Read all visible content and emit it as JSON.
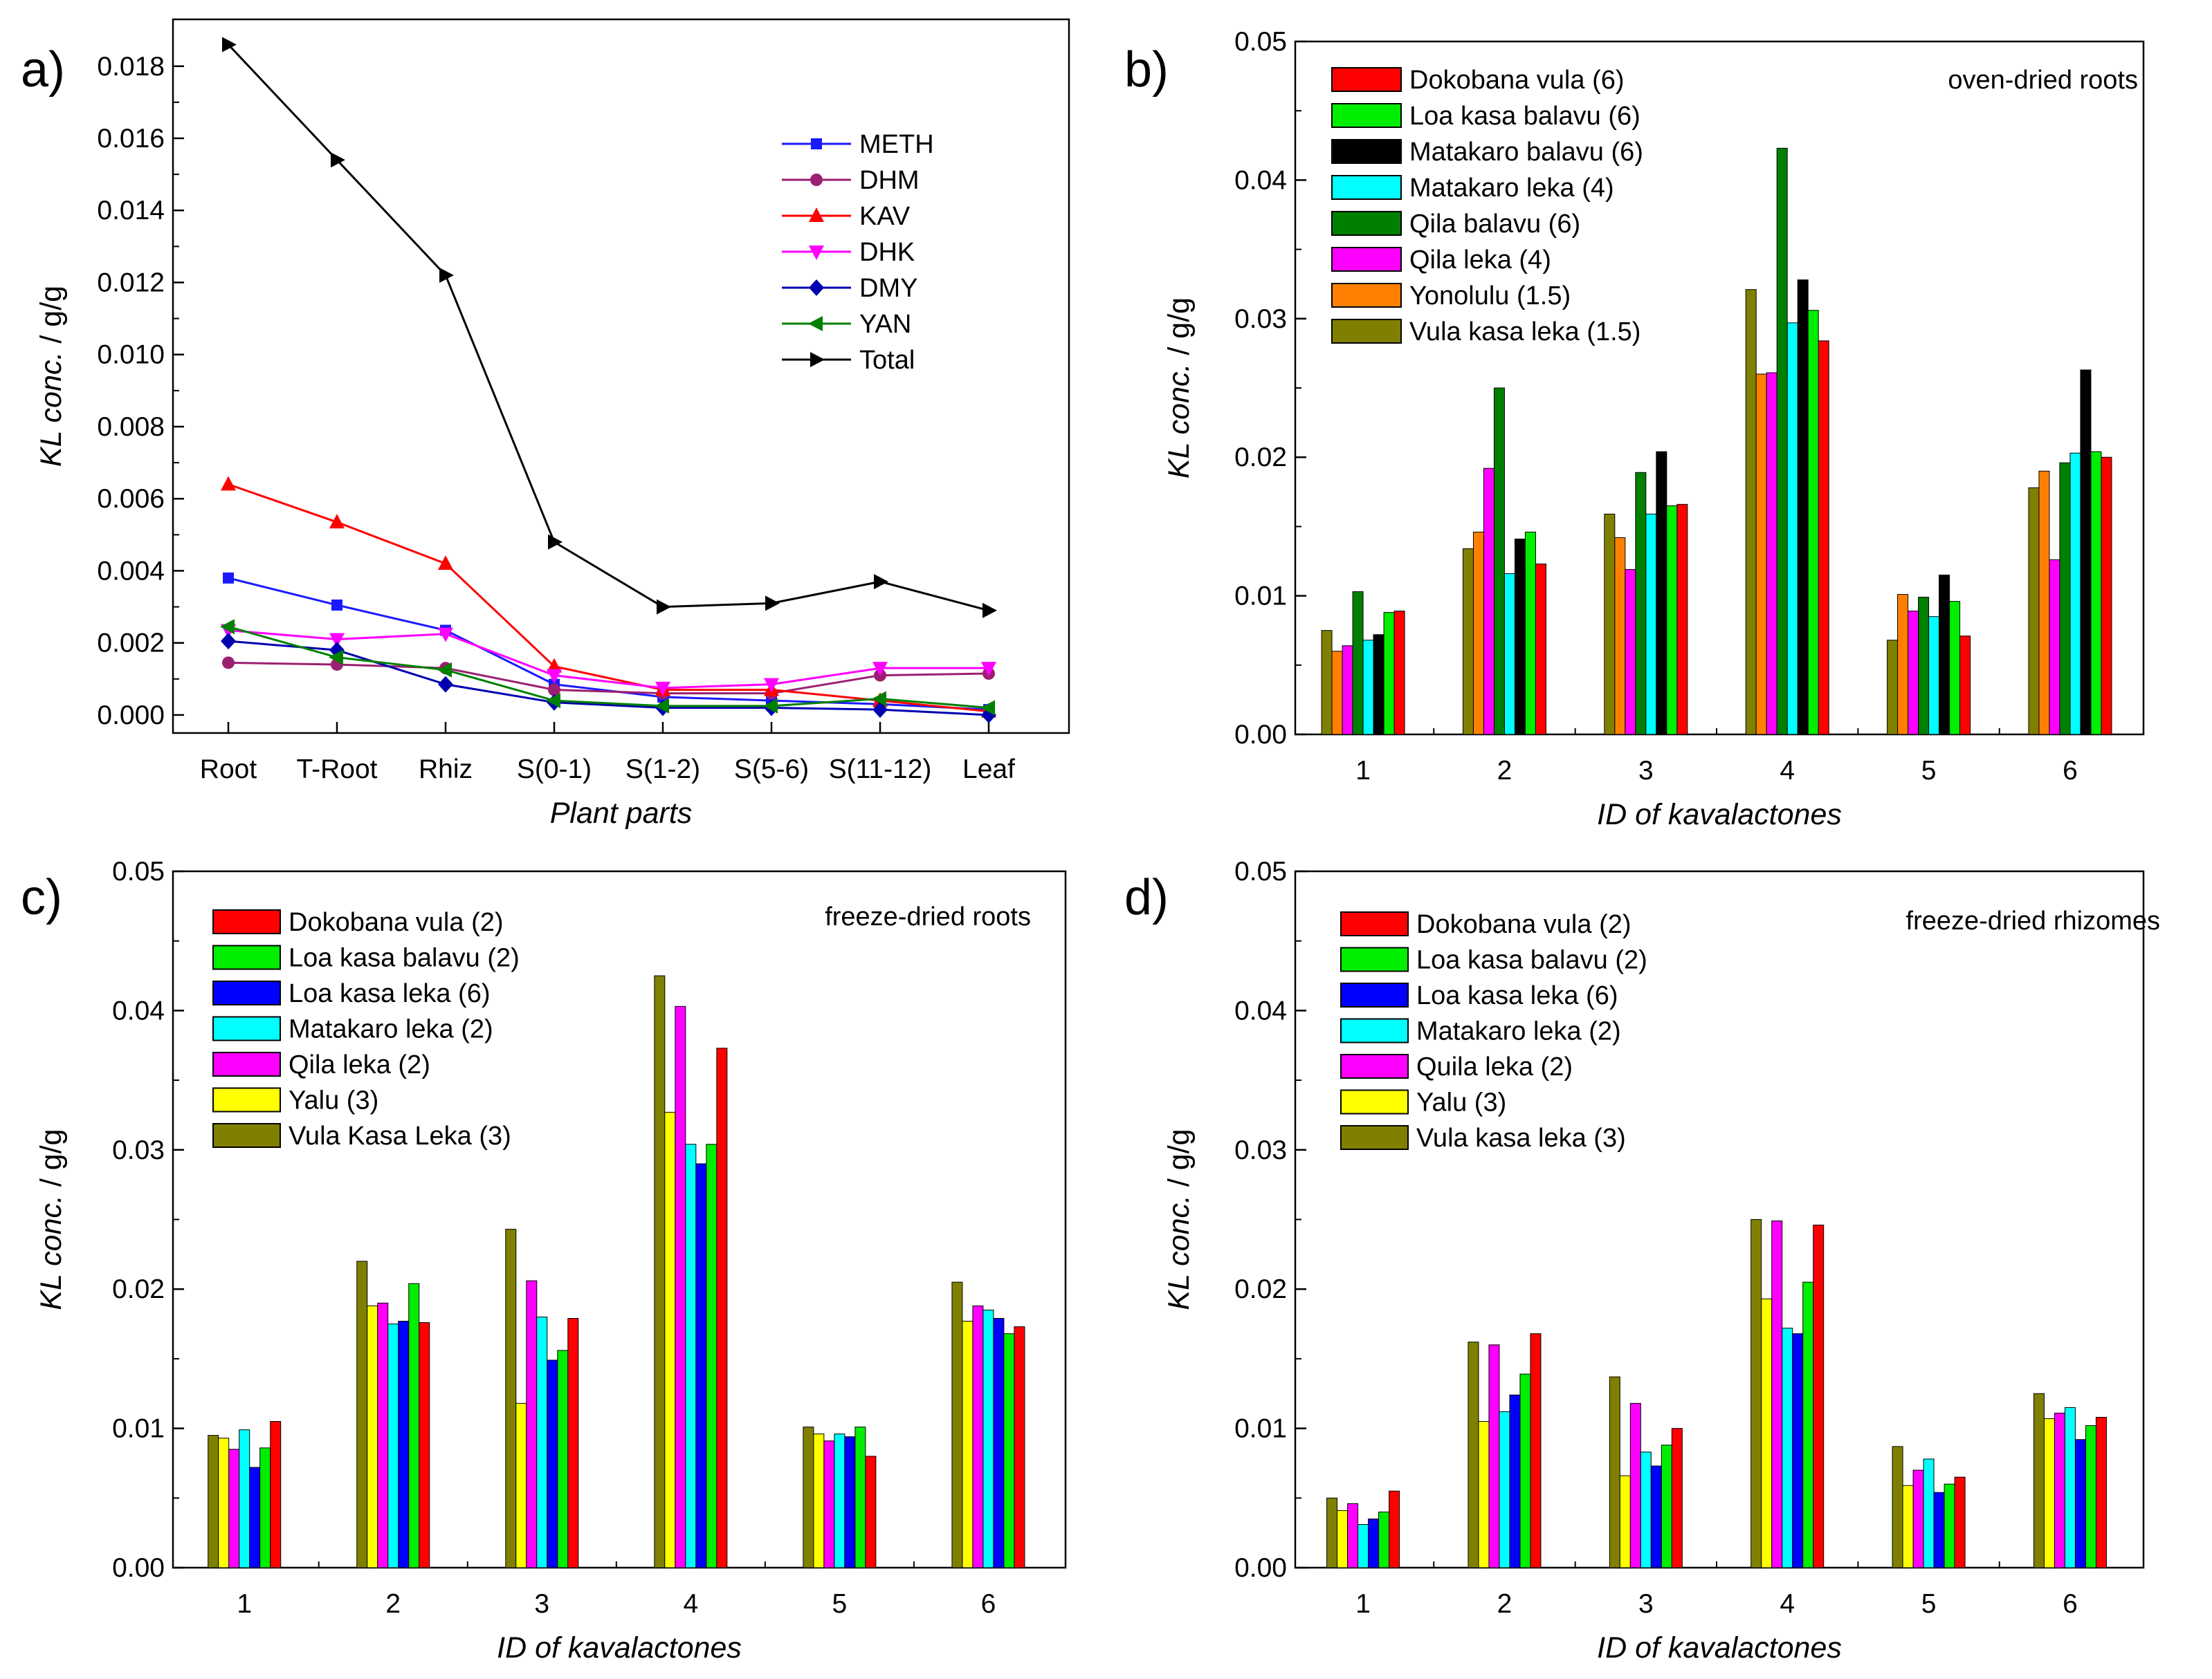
{
  "chart_data": [
    {
      "type": "line",
      "panel_label": "a)",
      "xlabel": "Plant parts",
      "ylabel_italic": "KL conc.",
      "ylabel_unit": " / g/g",
      "ylim": [
        -0.0005,
        0.0193
      ],
      "yticks": [
        "0.000",
        "0.002",
        "0.004",
        "0.006",
        "0.008",
        "0.010",
        "0.012",
        "0.014",
        "0.016",
        "0.018"
      ],
      "categories": [
        "Root",
        "T-Root",
        "Rhiz",
        "S(0-1)",
        "S(1-2)",
        "S(5-6)",
        "S(11-12)",
        "Leaf"
      ],
      "series": [
        {
          "name": "METH",
          "color": "#1a1aff",
          "marker": "square",
          "values": [
            0.0038,
            0.00305,
            0.00235,
            0.00085,
            0.0005,
            0.0004,
            0.0003,
            0.00015
          ]
        },
        {
          "name": "DHM",
          "color": "#9b1f72",
          "marker": "circle",
          "values": [
            0.00145,
            0.0014,
            0.0013,
            0.0007,
            0.0006,
            0.0006,
            0.0011,
            0.00115
          ]
        },
        {
          "name": "KAV",
          "color": "#ff0000",
          "marker": "triangle-up",
          "values": [
            0.0064,
            0.00535,
            0.0042,
            0.00135,
            0.0007,
            0.0007,
            0.0004,
            0.0001
          ]
        },
        {
          "name": "DHK",
          "color": "#ff00ff",
          "marker": "triangle-down",
          "values": [
            0.00235,
            0.0021,
            0.00225,
            0.0011,
            0.00075,
            0.00085,
            0.0013,
            0.0013
          ]
        },
        {
          "name": "DMY",
          "color": "#0000b0",
          "marker": "diamond",
          "values": [
            0.00205,
            0.0018,
            0.00085,
            0.00035,
            0.0002,
            0.0002,
            0.00015,
            0.0
          ]
        },
        {
          "name": "YAN",
          "color": "#008000",
          "marker": "triangle-left",
          "values": [
            0.00245,
            0.0016,
            0.00125,
            0.0004,
            0.00025,
            0.00025,
            0.00045,
            0.0002
          ]
        },
        {
          "name": "Total",
          "color": "#000000",
          "marker": "triangle-right",
          "values": [
            0.0186,
            0.0154,
            0.0122,
            0.0048,
            0.003,
            0.0031,
            0.0037,
            0.0029
          ]
        }
      ]
    },
    {
      "type": "bar",
      "panel_label": "b)",
      "annotation": "oven-dried roots",
      "xlabel": "ID of kavalactones",
      "ylabel_italic": "KL conc.",
      "ylabel_unit": " / g/g",
      "ylim": [
        0,
        0.05
      ],
      "yticks": [
        "0.00",
        "0.01",
        "0.02",
        "0.03",
        "0.04",
        "0.05"
      ],
      "categories": [
        "1",
        "2",
        "3",
        "4",
        "5",
        "6"
      ],
      "legend": [
        "Dokobana vula (6)",
        "Loa kasa balavu (6)",
        "Matakaro balavu (6)",
        "Matakaro leka (4)",
        "Qila balavu (6)",
        "Qila leka (4)",
        "Yonolulu (1.5)",
        "Vula kasa leka (1.5)"
      ],
      "legend_colors": [
        "#ff0000",
        "#00ee00",
        "#000000",
        "#00ffff",
        "#008000",
        "#ff00ff",
        "#ff8000",
        "#808000"
      ],
      "series": [
        {
          "name": "Vula kasa leka (1.5)",
          "color": "#808000",
          "values": [
            0.0075,
            0.0134,
            0.0159,
            0.0321,
            0.0068,
            0.0178
          ]
        },
        {
          "name": "Yonolulu (1.5)",
          "color": "#ff8000",
          "values": [
            0.006,
            0.0146,
            0.0142,
            0.026,
            0.0101,
            0.019
          ]
        },
        {
          "name": "Qila leka (4)",
          "color": "#ff00ff",
          "values": [
            0.0064,
            0.0192,
            0.0119,
            0.0261,
            0.0089,
            0.0126
          ]
        },
        {
          "name": "Qila balavu (6)",
          "color": "#008000",
          "values": [
            0.0103,
            0.025,
            0.0189,
            0.0423,
            0.0099,
            0.0196
          ]
        },
        {
          "name": "Matakaro leka (4)",
          "color": "#00ffff",
          "values": [
            0.0068,
            0.0116,
            0.0159,
            0.0297,
            0.0085,
            0.0203
          ]
        },
        {
          "name": "Matakaro balavu (6)",
          "color": "#000000",
          "values": [
            0.0072,
            0.0141,
            0.0204,
            0.0328,
            0.0115,
            0.0263
          ]
        },
        {
          "name": "Loa kasa balavu (6)",
          "color": "#00ee00",
          "values": [
            0.0088,
            0.0146,
            0.0165,
            0.0306,
            0.0096,
            0.0204
          ]
        },
        {
          "name": "Dokobana vula (6)",
          "color": "#ff0000",
          "values": [
            0.0089,
            0.0123,
            0.0166,
            0.0284,
            0.0071,
            0.02
          ]
        }
      ]
    },
    {
      "type": "bar",
      "panel_label": "c)",
      "annotation": "freeze-dried roots",
      "xlabel": "ID of kavalactones",
      "ylabel_italic": "KL conc.",
      "ylabel_unit": " / g/g",
      "ylim": [
        0,
        0.05
      ],
      "yticks": [
        "0.00",
        "0.01",
        "0.02",
        "0.03",
        "0.04",
        "0.05"
      ],
      "categories": [
        "1",
        "2",
        "3",
        "4",
        "5",
        "6"
      ],
      "legend": [
        "Dokobana vula (2)",
        "Loa kasa balavu (2)",
        "Loa kasa leka (6)",
        "Matakaro leka (2)",
        "Qila leka (2)",
        "Yalu (3)",
        "Vula Kasa Leka (3)"
      ],
      "legend_colors": [
        "#ff0000",
        "#00ee00",
        "#0000ff",
        "#00ffff",
        "#ff00ff",
        "#ffff00",
        "#808000"
      ],
      "series": [
        {
          "name": "Vula Kasa Leka (3)",
          "color": "#808000",
          "values": [
            0.0095,
            0.022,
            0.0243,
            0.0425,
            0.0101,
            0.0205
          ]
        },
        {
          "name": "Yalu (3)",
          "color": "#ffff00",
          "values": [
            0.0093,
            0.0188,
            0.0118,
            0.0327,
            0.0096,
            0.0177
          ]
        },
        {
          "name": "Qila leka (2)",
          "color": "#ff00ff",
          "values": [
            0.0085,
            0.019,
            0.0206,
            0.0403,
            0.0091,
            0.0188
          ]
        },
        {
          "name": "Matakaro leka (2)",
          "color": "#00ffff",
          "values": [
            0.0099,
            0.0175,
            0.018,
            0.0304,
            0.0096,
            0.0185
          ]
        },
        {
          "name": "Loa kasa leka (6)",
          "color": "#0000ff",
          "values": [
            0.0072,
            0.0177,
            0.0149,
            0.029,
            0.0094,
            0.0179
          ]
        },
        {
          "name": "Loa kasa balavu (2)",
          "color": "#00ee00",
          "values": [
            0.0086,
            0.0204,
            0.0156,
            0.0304,
            0.0101,
            0.0168
          ]
        },
        {
          "name": "Dokobana vula (2)",
          "color": "#ff0000",
          "values": [
            0.0105,
            0.0176,
            0.0179,
            0.0373,
            0.008,
            0.0173
          ]
        }
      ]
    },
    {
      "type": "bar",
      "panel_label": "d)",
      "annotation": "freeze-dried rhizomes",
      "xlabel": "ID of kavalactones",
      "ylabel_italic": "KL conc.",
      "ylabel_unit": " / g/g",
      "ylim": [
        0,
        0.05
      ],
      "yticks": [
        "0.00",
        "0.01",
        "0.02",
        "0.03",
        "0.04",
        "0.05"
      ],
      "categories": [
        "1",
        "2",
        "3",
        "4",
        "5",
        "6"
      ],
      "legend": [
        "Dokobana vula (2)",
        "Loa kasa balavu (2)",
        "Loa kasa leka (6)",
        "Matakaro leka (2)",
        "Quila leka (2)",
        "Yalu (3)",
        "Vula kasa leka (3)"
      ],
      "legend_colors": [
        "#ff0000",
        "#00ee00",
        "#0000ff",
        "#00ffff",
        "#ff00ff",
        "#ffff00",
        "#808000"
      ],
      "series": [
        {
          "name": "Vula kasa leka (3)",
          "color": "#808000",
          "values": [
            0.005,
            0.0162,
            0.0137,
            0.025,
            0.0087,
            0.0125
          ]
        },
        {
          "name": "Yalu (3)",
          "color": "#ffff00",
          "values": [
            0.0041,
            0.0105,
            0.0066,
            0.0193,
            0.0059,
            0.0107
          ]
        },
        {
          "name": "Quila leka (2)",
          "color": "#ff00ff",
          "values": [
            0.0046,
            0.016,
            0.0118,
            0.0249,
            0.007,
            0.0111
          ]
        },
        {
          "name": "Matakaro leka (2)",
          "color": "#00ffff",
          "values": [
            0.0031,
            0.0112,
            0.0083,
            0.0172,
            0.0078,
            0.0115
          ]
        },
        {
          "name": "Loa kasa leka (6)",
          "color": "#0000ff",
          "values": [
            0.0035,
            0.0124,
            0.0073,
            0.0168,
            0.0054,
            0.0092
          ]
        },
        {
          "name": "Loa kasa balavu (2)",
          "color": "#00ee00",
          "values": [
            0.004,
            0.0139,
            0.0088,
            0.0205,
            0.006,
            0.0102
          ]
        },
        {
          "name": "Dokobana vula (2)",
          "color": "#ff0000",
          "values": [
            0.0055,
            0.0168,
            0.01,
            0.0246,
            0.0065,
            0.0108
          ]
        }
      ]
    }
  ]
}
